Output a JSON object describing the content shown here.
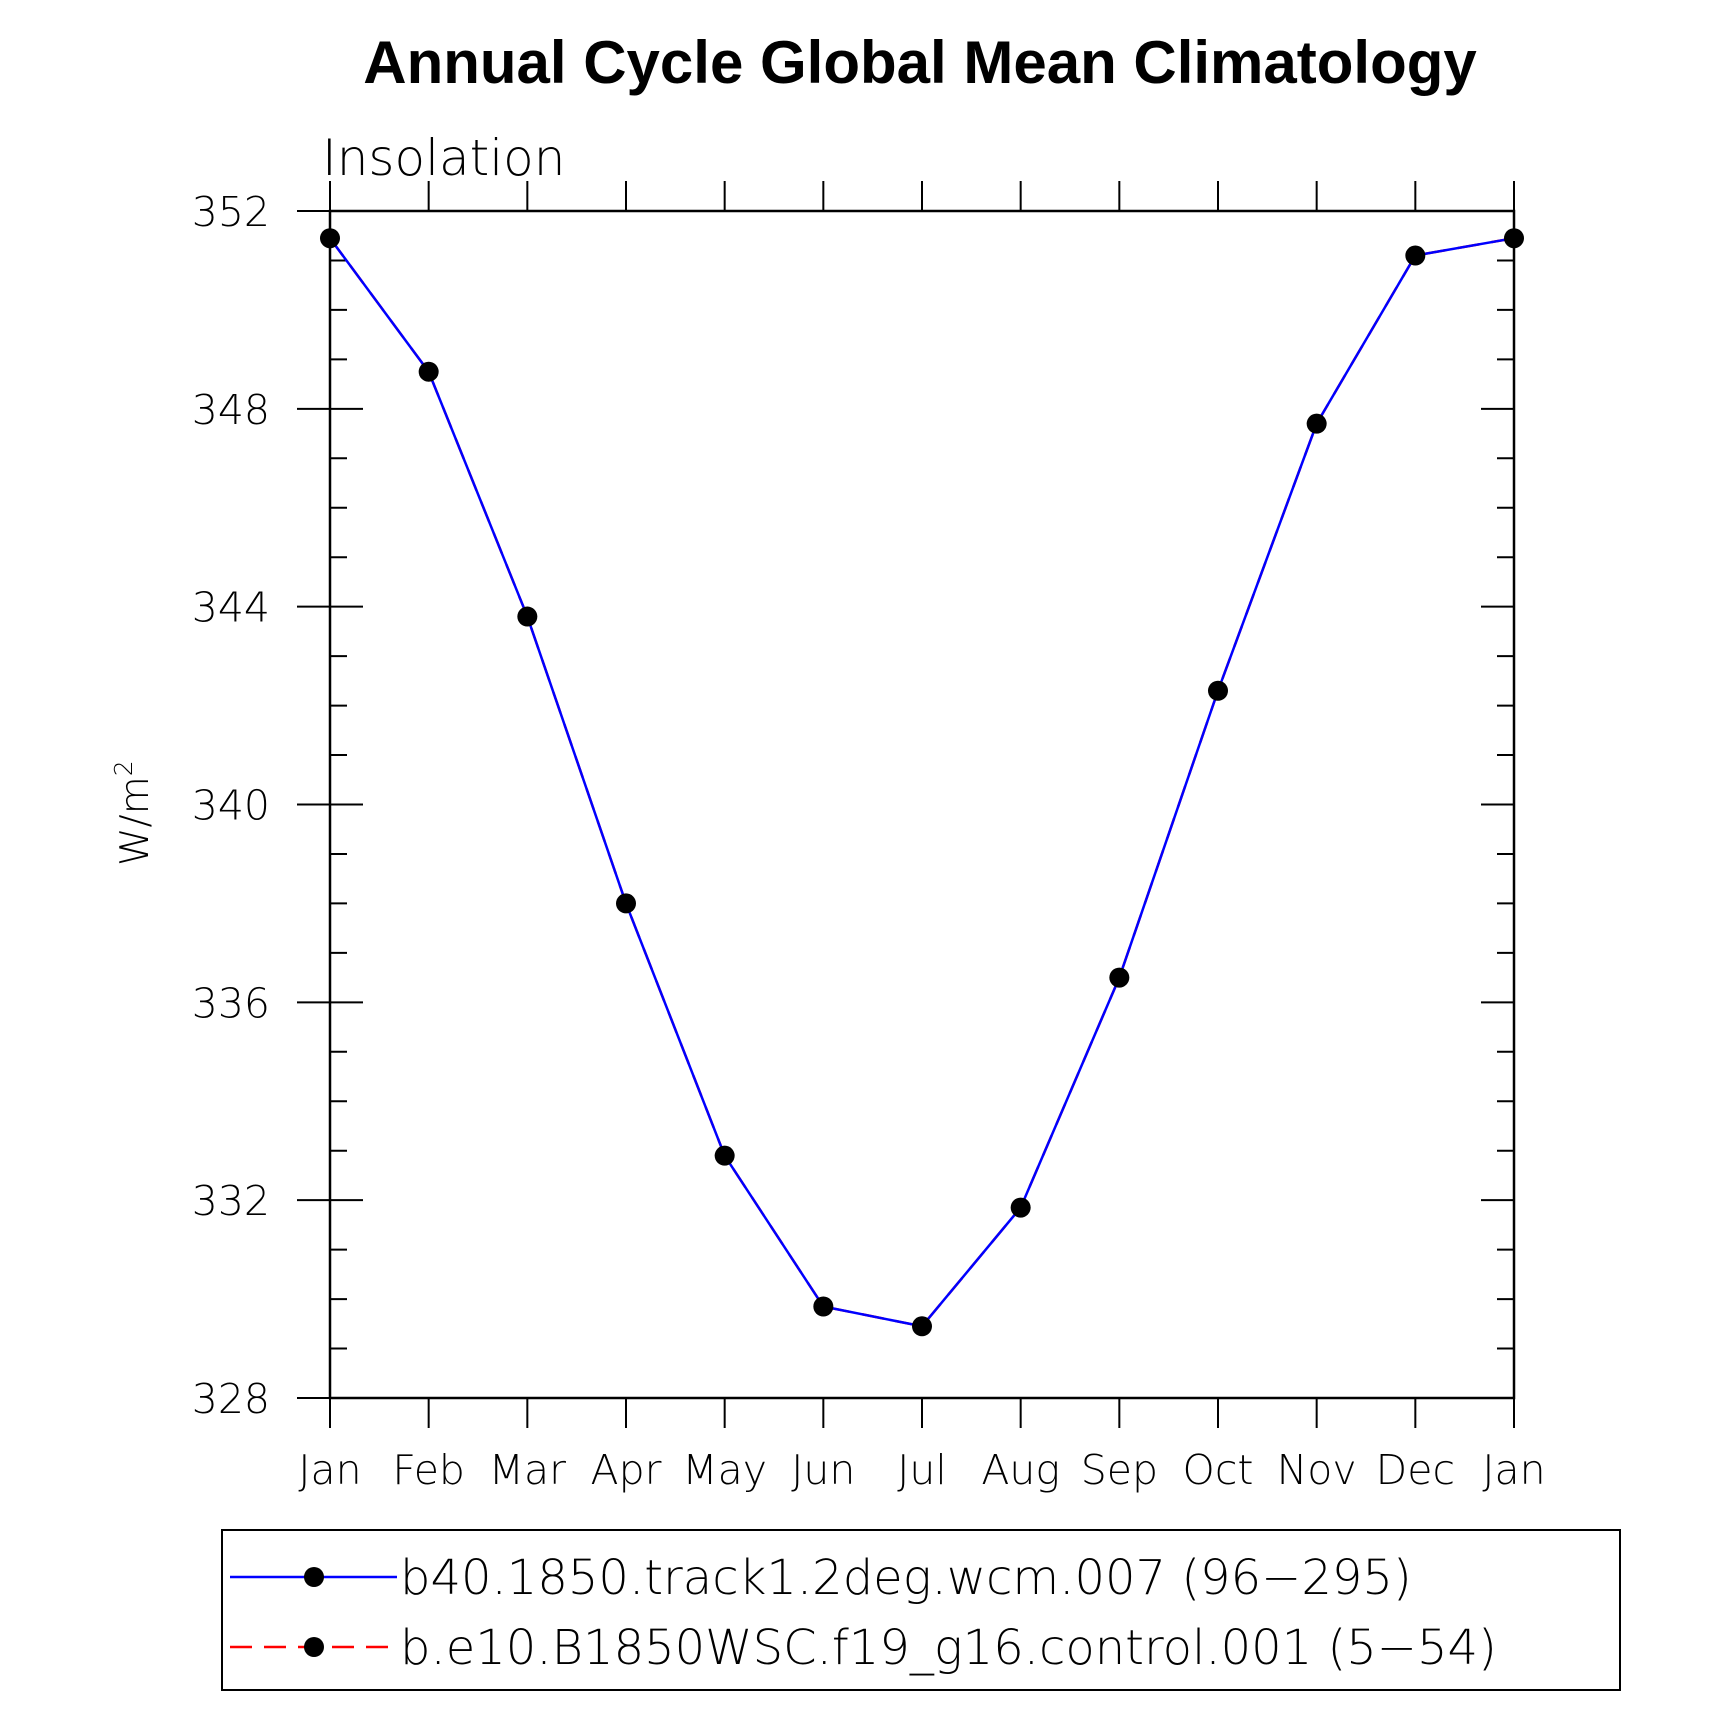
{
  "chart_data": {
    "type": "line",
    "title": "Annual Cycle Global Mean Climatology",
    "subtitle": "Insolation",
    "ylabel": "W/m",
    "ylabel_superscript": "2",
    "ylim": [
      328,
      352
    ],
    "yticks": [
      "352",
      "348",
      "344",
      "340",
      "336",
      "332",
      "328"
    ],
    "ytick_values": [
      352,
      348,
      344,
      340,
      336,
      332,
      328
    ],
    "yminor_step": 1,
    "categories": [
      "Jan",
      "Feb",
      "Mar",
      "Apr",
      "May",
      "Jun",
      "Jul",
      "Aug",
      "Sep",
      "Oct",
      "Nov",
      "Dec",
      "Jan"
    ],
    "series": [
      {
        "name": "b40.1850.track1.2deg.wcm.007 (96−295)",
        "color": "#0000ff",
        "line_style": "solid",
        "marker": "filled-circle",
        "marker_color": "#000000",
        "values": [
          351.45,
          348.75,
          343.8,
          338.0,
          332.9,
          329.85,
          329.45,
          331.85,
          336.5,
          342.3,
          347.7,
          351.1,
          351.45
        ]
      },
      {
        "name": "b.e10.B1850WSC.f19_g16.control.001 (5−54)",
        "color": "#ff0000",
        "line_style": "dashed",
        "marker": "filled-circle",
        "marker_color": "#000000",
        "values": [
          351.45,
          348.75,
          343.8,
          338.0,
          332.9,
          329.85,
          329.45,
          331.85,
          336.5,
          342.3,
          347.7,
          351.1,
          351.45
        ]
      }
    ],
    "legend_position": "bottom",
    "grid": false
  }
}
